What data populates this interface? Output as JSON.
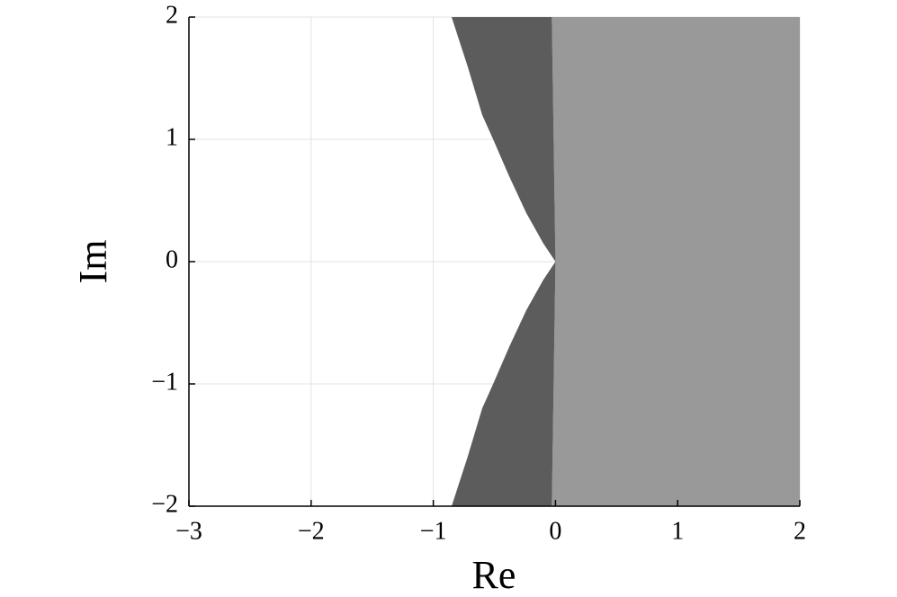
{
  "chart_data": {
    "type": "area",
    "x_label": "Re",
    "y_label": "Im",
    "xlim": [
      -3,
      2
    ],
    "ylim": [
      -2,
      2
    ],
    "xticks": [
      {
        "value": -3,
        "label": "−3"
      },
      {
        "value": -2,
        "label": "−2"
      },
      {
        "value": -1,
        "label": "−1"
      },
      0,
      1,
      2
    ],
    "yticks": [
      {
        "value": -2,
        "label": "−2"
      },
      {
        "value": -1,
        "label": "−1"
      },
      0,
      1,
      2
    ],
    "grid": true,
    "series": [
      {
        "color": "#999999",
        "x": [
          -0.03,
          2,
          2,
          -0.03,
          -0.015,
          0,
          -0.015
        ],
        "values": [
          2,
          2,
          -2,
          -2,
          -1,
          0,
          1
        ]
      },
      {
        "color": "#5c5c5c",
        "x": [
          -0.85,
          -0.72,
          -0.6,
          -0.51,
          -0.38,
          -0.24,
          -0.1,
          0,
          -0.1,
          -0.24,
          -0.38,
          -0.51,
          -0.6,
          -0.72,
          -0.85,
          -0.03,
          -0.015,
          0,
          -0.015,
          -0.03
        ],
        "values": [
          2,
          1.6,
          1.2,
          1,
          0.7,
          0.4,
          0.15,
          0,
          -0.15,
          -0.4,
          -0.7,
          -1,
          -1.2,
          -1.6,
          -2,
          -2,
          -1,
          0,
          1,
          2
        ]
      }
    ]
  }
}
